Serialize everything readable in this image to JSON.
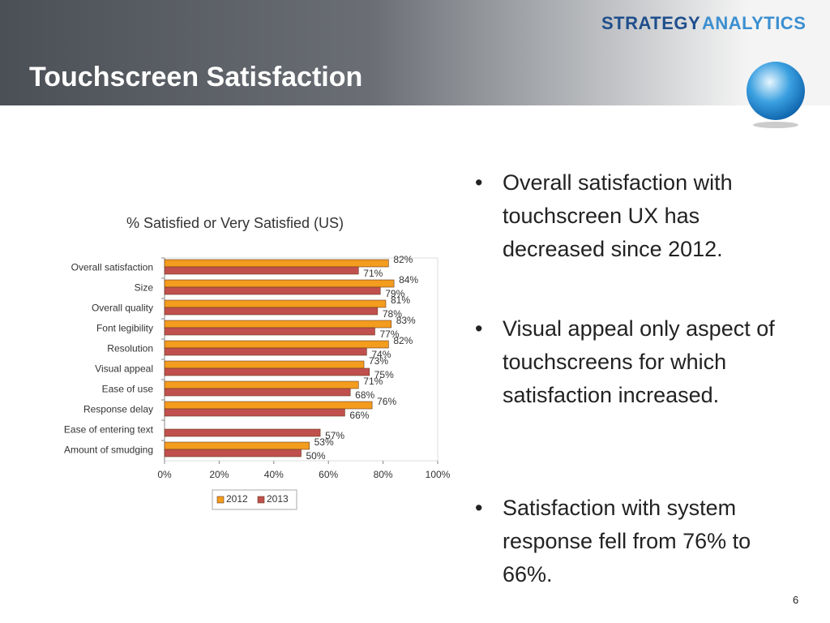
{
  "slide": {
    "title": "Touchscreen Satisfaction",
    "logo": [
      "STRATEGY",
      "ANALYTICS"
    ],
    "page_number": "6",
    "bullets": [
      "Overall satisfaction with touchscreen UX has decreased since 2012.",
      "Visual appeal only aspect of touchscreens for which satisfaction increased.",
      "Satisfaction with system response fell from 76% to 66%."
    ]
  },
  "chart_data": {
    "type": "hbar",
    "title": "% Satisfied or Very Satisfied (US)",
    "categories": [
      "Overall satisfaction",
      "Size",
      "Overall quality",
      "Font legibility",
      "Resolution",
      "Visual appeal",
      "Ease of use",
      "Response delay",
      "Ease of entering text",
      "Amount of smudging"
    ],
    "series": [
      {
        "name": "2012",
        "color": "#f39c1e",
        "values": [
          82,
          84,
          81,
          83,
          82,
          73,
          71,
          76,
          null,
          53
        ],
        "value_labels": [
          "82%",
          "84%",
          "81%",
          "83%",
          "82%",
          "73%",
          "71%",
          "76%",
          null,
          "53%"
        ]
      },
      {
        "name": "2013",
        "color": "#c0504d",
        "values": [
          71,
          79,
          78,
          77,
          74,
          75,
          68,
          66,
          57,
          50
        ],
        "value_labels": [
          "71%",
          "79%",
          "78%",
          "77%",
          "74%",
          "75%",
          "68%",
          "66%",
          "57%",
          "50%"
        ]
      }
    ],
    "xlim": [
      0,
      100
    ],
    "xticks": [
      {
        "value": 0,
        "label": "0%"
      },
      {
        "value": 20,
        "label": "20%"
      },
      {
        "value": 40,
        "label": "40%"
      },
      {
        "value": 60,
        "label": "60%"
      },
      {
        "value": 80,
        "label": "80%"
      },
      {
        "value": 100,
        "label": "100%"
      }
    ],
    "legend": "bottom"
  }
}
